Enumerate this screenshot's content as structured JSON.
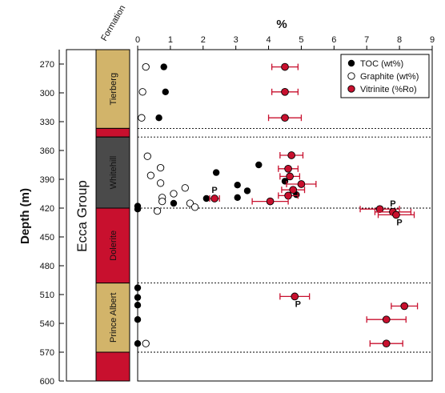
{
  "chart_data": {
    "type": "scatter",
    "title": "",
    "xlabel": "%",
    "ylabel": "Depth (m)",
    "xlim": [
      0,
      9
    ],
    "ylim": [
      600,
      255
    ],
    "x_ticks": [
      "0",
      "1",
      "2",
      "3",
      "4",
      "5",
      "6",
      "7",
      "8",
      "9"
    ],
    "y_ticks": [
      270,
      300,
      330,
      360,
      390,
      420,
      450,
      480,
      510,
      540,
      570,
      600
    ],
    "y_tick_labels": [
      "270",
      "300",
      "330",
      "360",
      "390",
      "420",
      "450",
      "480",
      "510",
      "540",
      "570",
      "600"
    ],
    "group_label": "Ecca Group",
    "formation_header": "Formation",
    "legend_position": "top-right",
    "formations": [
      {
        "name": "Tierberg",
        "top": 255,
        "bottom": 337,
        "color": "#d2b46a"
      },
      {
        "name": "",
        "top": 337,
        "bottom": 346,
        "color": "#c8102e"
      },
      {
        "name": "Whitehill",
        "top": 346,
        "bottom": 420,
        "color": "#4a4a4a"
      },
      {
        "name": "Dolerite",
        "top": 420,
        "bottom": 498,
        "color": "#c8102e"
      },
      {
        "name": "Prince Albert",
        "top": 498,
        "bottom": 570,
        "color": "#d2b46a"
      },
      {
        "name": "",
        "top": 570,
        "bottom": 600,
        "color": "#c8102e"
      }
    ],
    "boundaries": [
      337,
      346,
      420,
      498,
      570
    ],
    "series": [
      {
        "name": "TOC (wt%)",
        "marker": "filled",
        "color": "#000000",
        "points": [
          {
            "x": 0.8,
            "y": 273
          },
          {
            "x": 0.85,
            "y": 299
          },
          {
            "x": 0.65,
            "y": 326
          },
          {
            "x": 3.7,
            "y": 375
          },
          {
            "x": 2.4,
            "y": 383
          },
          {
            "x": 4.5,
            "y": 392
          },
          {
            "x": 3.05,
            "y": 396
          },
          {
            "x": 3.35,
            "y": 402
          },
          {
            "x": 4.85,
            "y": 406
          },
          {
            "x": 2.1,
            "y": 410
          },
          {
            "x": 3.05,
            "y": 409
          },
          {
            "x": 1.1,
            "y": 415
          },
          {
            "x": 0.0,
            "y": 418
          },
          {
            "x": 0.0,
            "y": 421
          },
          {
            "x": 0.0,
            "y": 503
          },
          {
            "x": 0.0,
            "y": 513
          },
          {
            "x": 0.0,
            "y": 521
          },
          {
            "x": 0.0,
            "y": 536
          },
          {
            "x": 0.0,
            "y": 561
          }
        ]
      },
      {
        "name": "Graphite (wt%)",
        "marker": "open",
        "color": "#000000",
        "points": [
          {
            "x": 0.25,
            "y": 273
          },
          {
            "x": 0.15,
            "y": 299
          },
          {
            "x": 0.12,
            "y": 326
          },
          {
            "x": 0.3,
            "y": 366
          },
          {
            "x": 0.7,
            "y": 378
          },
          {
            "x": 0.4,
            "y": 386
          },
          {
            "x": 0.7,
            "y": 394
          },
          {
            "x": 1.45,
            "y": 399
          },
          {
            "x": 1.1,
            "y": 405
          },
          {
            "x": 0.75,
            "y": 409
          },
          {
            "x": 0.75,
            "y": 413
          },
          {
            "x": 1.6,
            "y": 415
          },
          {
            "x": 1.75,
            "y": 419
          },
          {
            "x": 0.6,
            "y": 423
          },
          {
            "x": 0.25,
            "y": 561
          }
        ]
      },
      {
        "name": "Vitrinite (%Ro)",
        "marker": "filled-error",
        "color": "#c8102e",
        "points": [
          {
            "x": 4.5,
            "y": 273,
            "xerr": 0.4
          },
          {
            "x": 4.5,
            "y": 299,
            "xerr": 0.4
          },
          {
            "x": 4.5,
            "y": 326,
            "xerr": 0.5
          },
          {
            "x": 4.7,
            "y": 365,
            "xerr": 0.35
          },
          {
            "x": 4.6,
            "y": 379,
            "xerr": 0.3
          },
          {
            "x": 4.65,
            "y": 387,
            "xerr": 0.3
          },
          {
            "x": 5.0,
            "y": 395,
            "xerr": 0.45
          },
          {
            "x": 4.75,
            "y": 401,
            "xerr": 0.35
          },
          {
            "x": 4.6,
            "y": 407,
            "xerr": 0.3
          },
          {
            "x": 2.35,
            "y": 410,
            "xerr": 0.15,
            "label": "P"
          },
          {
            "x": 4.05,
            "y": 413,
            "xerr": 0.55
          },
          {
            "x": 7.4,
            "y": 421,
            "xerr": 0.6
          },
          {
            "x": 7.8,
            "y": 424,
            "xerr": 0.55,
            "label": "P"
          },
          {
            "x": 7.9,
            "y": 427,
            "xerr": 0.55,
            "label": "P"
          },
          {
            "x": 4.8,
            "y": 512,
            "xerr": 0.45,
            "label": "P"
          },
          {
            "x": 8.15,
            "y": 522,
            "xerr": 0.4
          },
          {
            "x": 7.6,
            "y": 536,
            "xerr": 0.6
          },
          {
            "x": 7.6,
            "y": 561,
            "xerr": 0.5
          }
        ]
      }
    ]
  }
}
